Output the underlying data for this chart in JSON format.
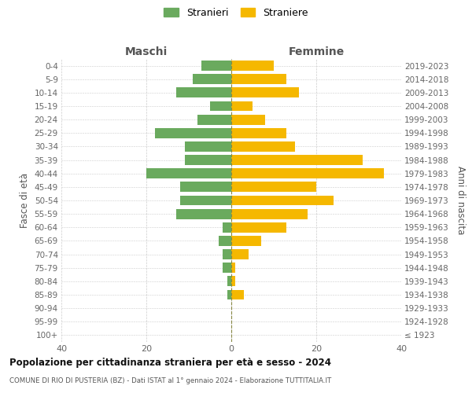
{
  "age_groups": [
    "100+",
    "95-99",
    "90-94",
    "85-89",
    "80-84",
    "75-79",
    "70-74",
    "65-69",
    "60-64",
    "55-59",
    "50-54",
    "45-49",
    "40-44",
    "35-39",
    "30-34",
    "25-29",
    "20-24",
    "15-19",
    "10-14",
    "5-9",
    "0-4"
  ],
  "birth_years": [
    "≤ 1923",
    "1924-1928",
    "1929-1933",
    "1934-1938",
    "1939-1943",
    "1944-1948",
    "1949-1953",
    "1954-1958",
    "1959-1963",
    "1964-1968",
    "1969-1973",
    "1974-1978",
    "1979-1983",
    "1984-1988",
    "1989-1993",
    "1994-1998",
    "1999-2003",
    "2004-2008",
    "2009-2013",
    "2014-2018",
    "2019-2023"
  ],
  "maschi": [
    0,
    0,
    0,
    1,
    1,
    2,
    2,
    3,
    2,
    13,
    12,
    12,
    20,
    11,
    11,
    18,
    8,
    5,
    13,
    9,
    7
  ],
  "femmine": [
    0,
    0,
    0,
    3,
    1,
    1,
    4,
    7,
    13,
    18,
    24,
    20,
    36,
    31,
    15,
    13,
    8,
    5,
    16,
    13,
    10
  ],
  "maschi_color": "#6aaa5e",
  "femmine_color": "#f5b800",
  "background_color": "#ffffff",
  "grid_color": "#cccccc",
  "title": "Popolazione per cittadinanza straniera per età e sesso - 2024",
  "subtitle": "COMUNE DI RIO DI PUSTERIA (BZ) - Dati ISTAT al 1° gennaio 2024 - Elaborazione TUTTITALIA.IT",
  "ylabel_left": "Fasce di età",
  "ylabel_right": "Anni di nascita",
  "xlabel_left": "Maschi",
  "xlabel_right": "Femmine",
  "legend_maschi": "Stranieri",
  "legend_femmine": "Straniere",
  "xlim": 40,
  "bar_height": 0.75,
  "dpi": 100,
  "figsize": [
    6.0,
    5.0
  ]
}
